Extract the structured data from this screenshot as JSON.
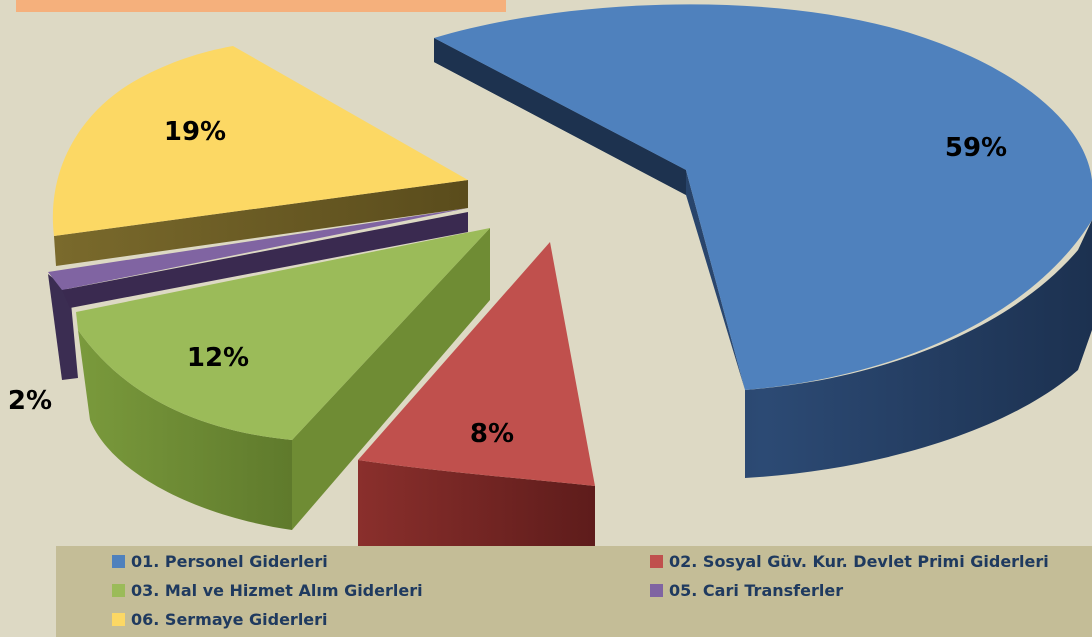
{
  "chart_data": {
    "type": "pie",
    "title": "",
    "categories": [
      "01. Personel Giderleri",
      "02. Sosyal Güv. Kur. Devlet Primi Giderleri",
      "03. Mal ve Hizmet Alım Giderleri",
      "05. Cari Transferler",
      "06. Sermaye Giderleri"
    ],
    "values": [
      59,
      8,
      12,
      2,
      19
    ],
    "data_labels": [
      "59%",
      "8%",
      "12%",
      "2%",
      "19%"
    ],
    "colors": [
      "#4f81bd",
      "#c0504d",
      "#9bbb59",
      "#8064a2",
      "#fcd864"
    ],
    "legend_position": "bottom"
  }
}
